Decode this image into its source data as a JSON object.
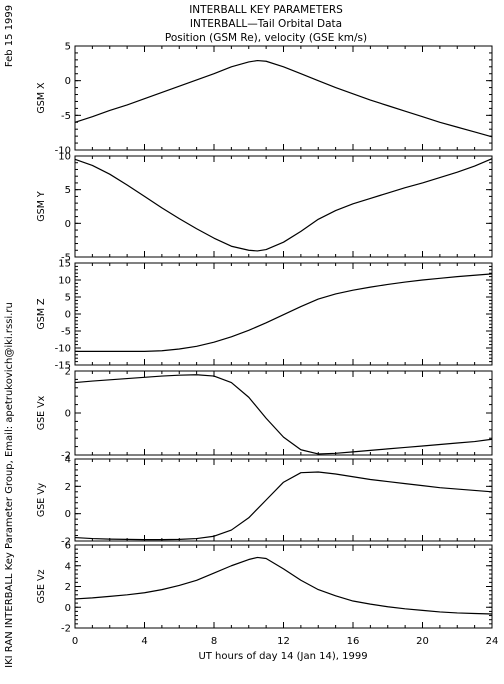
{
  "header": {
    "date": "Feb 15 1999",
    "title_lines": [
      "INTERBALL KEY PARAMETERS",
      "INTERBALL—Tail Orbital Data",
      "Position (GSM Re), velocity (GSE km/s)"
    ],
    "credit": "IKI RAN INTERBALL Key Parameter Group, Email: apetrukovich@iki.rssi.ru"
  },
  "chart_data": {
    "type": "line",
    "xlabel": "UT hours of day  14 (Jan 14), 1999",
    "xlim": [
      0,
      24
    ],
    "xticks": [
      0,
      4,
      8,
      12,
      16,
      20,
      24
    ],
    "panels": [
      {
        "ylabel": "GSM X",
        "ylim": [
          -10,
          5
        ],
        "yticks": [
          5,
          0,
          -5,
          -10
        ],
        "x": [
          0,
          1,
          2,
          3,
          4,
          5,
          6,
          7,
          8,
          9,
          10,
          10.5,
          11,
          12,
          13,
          14,
          15,
          16,
          17,
          18,
          19,
          20,
          21,
          22,
          23,
          24
        ],
        "y": [
          -6.0,
          -5.2,
          -4.3,
          -3.5,
          -2.6,
          -1.7,
          -0.8,
          0.1,
          1.0,
          2.0,
          2.7,
          2.9,
          2.8,
          2.0,
          1.0,
          0.0,
          -1.0,
          -1.9,
          -2.8,
          -3.6,
          -4.4,
          -5.2,
          -6.0,
          -6.7,
          -7.4,
          -8.1
        ]
      },
      {
        "ylabel": "GSM Y",
        "ylim": [
          -5,
          10
        ],
        "yticks": [
          10,
          5,
          0,
          -5
        ],
        "x": [
          0,
          1,
          2,
          3,
          4,
          5,
          6,
          7,
          8,
          9,
          10,
          10.5,
          11,
          12,
          13,
          14,
          15,
          16,
          17,
          18,
          19,
          20,
          21,
          22,
          23,
          24
        ],
        "y": [
          9.5,
          8.6,
          7.3,
          5.7,
          4.0,
          2.3,
          0.7,
          -0.8,
          -2.2,
          -3.4,
          -4.0,
          -4.1,
          -3.9,
          -2.8,
          -1.2,
          0.6,
          1.9,
          2.9,
          3.7,
          4.5,
          5.3,
          6.0,
          6.8,
          7.6,
          8.5,
          9.6
        ]
      },
      {
        "ylabel": "GSM Z",
        "ylim": [
          -15,
          15
        ],
        "yticks": [
          15,
          10,
          5,
          0,
          -5,
          -10,
          -15
        ],
        "x": [
          0,
          1,
          2,
          3,
          4,
          5,
          6,
          7,
          8,
          9,
          10,
          11,
          12,
          13,
          14,
          15,
          16,
          17,
          18,
          19,
          20,
          21,
          22,
          23,
          24
        ],
        "y": [
          -11.0,
          -11.0,
          -11.0,
          -11.0,
          -11.0,
          -10.8,
          -10.3,
          -9.5,
          -8.3,
          -6.7,
          -4.8,
          -2.6,
          -0.2,
          2.2,
          4.4,
          5.9,
          7.0,
          7.9,
          8.7,
          9.4,
          10.0,
          10.5,
          11.0,
          11.4,
          11.8
        ]
      },
      {
        "ylabel": "GSE Vx",
        "ylim": [
          -2,
          2
        ],
        "yticks": [
          2,
          0,
          -2
        ],
        "x": [
          0,
          1,
          2,
          3,
          4,
          5,
          6,
          7,
          8,
          9,
          10,
          11,
          12,
          13,
          14,
          15,
          16,
          17,
          18,
          19,
          20,
          21,
          22,
          23,
          24
        ],
        "y": [
          1.45,
          1.52,
          1.58,
          1.64,
          1.7,
          1.76,
          1.8,
          1.82,
          1.76,
          1.45,
          0.75,
          -0.25,
          -1.15,
          -1.75,
          -1.95,
          -1.92,
          -1.85,
          -1.78,
          -1.71,
          -1.64,
          -1.57,
          -1.5,
          -1.43,
          -1.36,
          -1.25
        ]
      },
      {
        "ylabel": "GSE Vy",
        "ylim": [
          -2,
          4
        ],
        "yticks": [
          4,
          2,
          0,
          -2
        ],
        "x": [
          0,
          1,
          2,
          3,
          4,
          5,
          6,
          7,
          8,
          9,
          10,
          11,
          12,
          13,
          14,
          15,
          16,
          17,
          18,
          19,
          20,
          21,
          22,
          23,
          24
        ],
        "y": [
          -1.75,
          -1.82,
          -1.86,
          -1.88,
          -1.9,
          -1.9,
          -1.88,
          -1.82,
          -1.65,
          -1.2,
          -0.3,
          1.0,
          2.3,
          3.0,
          3.05,
          2.9,
          2.7,
          2.5,
          2.35,
          2.2,
          2.05,
          1.9,
          1.8,
          1.7,
          1.6
        ]
      },
      {
        "ylabel": "GSE Vz",
        "ylim": [
          -2,
          6
        ],
        "yticks": [
          6,
          4,
          2,
          0,
          -2
        ],
        "x": [
          0,
          1,
          2,
          3,
          4,
          5,
          6,
          7,
          8,
          9,
          10,
          10.5,
          11,
          12,
          13,
          14,
          15,
          16,
          17,
          18,
          19,
          20,
          21,
          22,
          23,
          24
        ],
        "y": [
          0.8,
          0.9,
          1.05,
          1.2,
          1.4,
          1.7,
          2.1,
          2.6,
          3.3,
          4.0,
          4.6,
          4.8,
          4.7,
          3.7,
          2.6,
          1.7,
          1.1,
          0.6,
          0.3,
          0.05,
          -0.15,
          -0.3,
          -0.45,
          -0.55,
          -0.6,
          -0.65
        ]
      }
    ]
  }
}
